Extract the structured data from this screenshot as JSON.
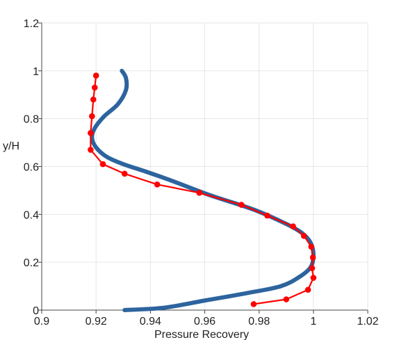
{
  "chart_data": {
    "type": "line",
    "title": "",
    "xlabel": "Pressure Recovery",
    "ylabel": "y/H",
    "xlim": [
      0.9,
      1.02
    ],
    "ylim": [
      0,
      1.2
    ],
    "x_ticks": [
      "0.9",
      "0.92",
      "0.94",
      "0.96",
      "0.98",
      "1",
      "1.02"
    ],
    "y_ticks": [
      "0",
      "0.2",
      "0.4",
      "0.6",
      "0.8",
      "1",
      "1.2"
    ],
    "grid": true,
    "legend": "none",
    "series": [
      {
        "color": "#2d649e",
        "style": "thick-line",
        "x": [
          0.9305,
          0.945,
          0.96,
          0.975,
          0.988,
          0.995,
          0.999,
          1.0,
          0.999,
          0.996,
          0.99,
          0.978,
          0.962,
          0.948,
          0.938,
          0.93,
          0.924,
          0.92,
          0.9185,
          0.9195,
          0.923,
          0.928,
          0.931,
          0.931,
          0.9295
        ],
        "y": [
          0.0,
          0.01,
          0.04,
          0.07,
          0.1,
          0.14,
          0.18,
          0.23,
          0.28,
          0.32,
          0.36,
          0.42,
          0.48,
          0.54,
          0.58,
          0.61,
          0.64,
          0.68,
          0.72,
          0.76,
          0.81,
          0.86,
          0.92,
          0.97,
          1.0
        ]
      },
      {
        "color": "#ff0000",
        "style": "line-markers",
        "x": [
          0.978,
          0.99,
          0.998,
          1.0,
          0.9995,
          0.9998,
          0.9992,
          0.9965,
          0.9925,
          0.983,
          0.9735,
          0.958,
          0.9425,
          0.9305,
          0.9225,
          0.918,
          0.918,
          0.9185,
          0.919,
          0.9195,
          0.92
        ],
        "y": [
          0.025,
          0.045,
          0.085,
          0.135,
          0.175,
          0.22,
          0.265,
          0.31,
          0.35,
          0.395,
          0.44,
          0.49,
          0.525,
          0.57,
          0.61,
          0.67,
          0.74,
          0.81,
          0.88,
          0.93,
          0.98
        ]
      }
    ]
  }
}
